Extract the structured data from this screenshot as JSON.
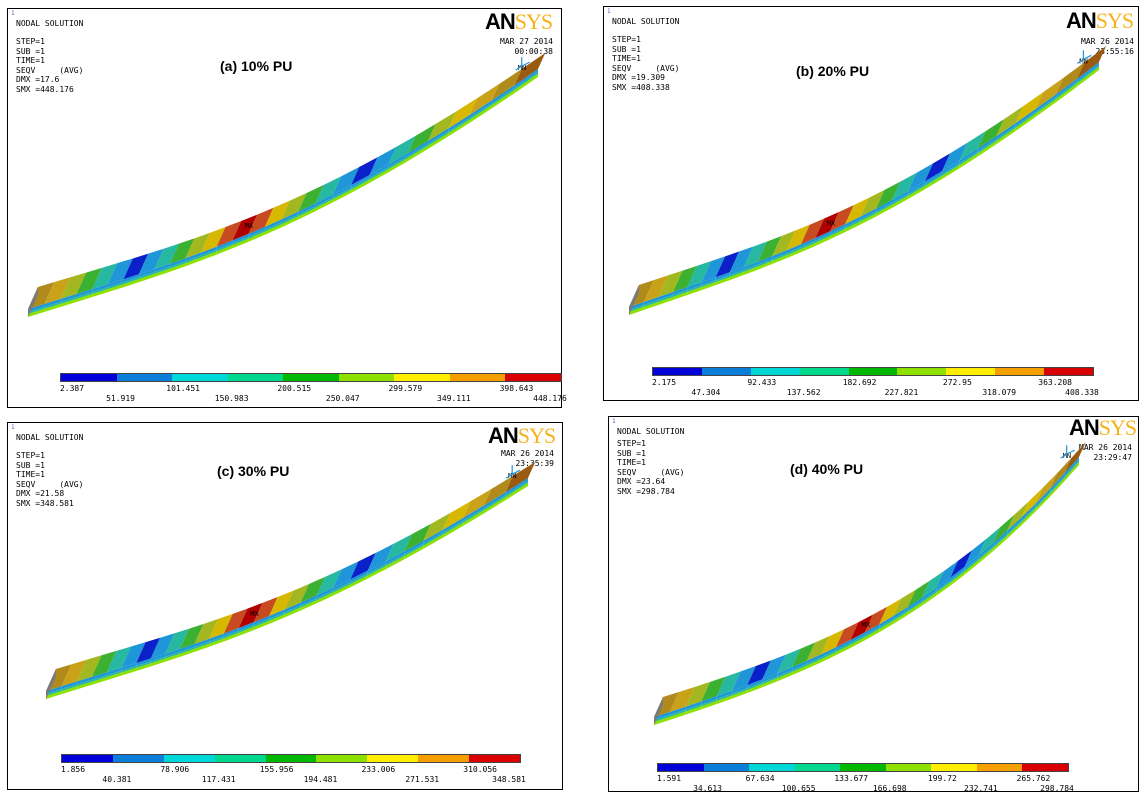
{
  "legend_colors": [
    "#0000d8",
    "#0a7ed8",
    "#00d8d8",
    "#00d88e",
    "#00b800",
    "#8ee000",
    "#ffee00",
    "#f5a000",
    "#d80000"
  ],
  "common": {
    "title": "NODAL SOLUTION",
    "step": "STEP=1",
    "sub": "SUB =1",
    "time": "TIME=1",
    "seqv": "SEQV     (AVG)",
    "logo_a": "AN",
    "logo_b": "SYS",
    "corner": "1",
    "mn": "MN",
    "mx": "MX"
  },
  "panels": [
    {
      "label": "(a) 10% PU",
      "dmx": "DMX =17.6",
      "smx": "SMX =448.176",
      "date": "MAR 27 2014",
      "time": "00:00:38",
      "legend_top": [
        "2.387",
        "101.451",
        "200.515",
        "299.579",
        "398.643"
      ],
      "legend_bottom": [
        "51.919",
        "150.983",
        "250.047",
        "349.111",
        "448.176"
      ]
    },
    {
      "label": "(b) 20% PU",
      "dmx": "DMX =19.309",
      "smx": "SMX =408.338",
      "date": "MAR 26 2014",
      "time": "23:55:16",
      "legend_top": [
        "2.175",
        "92.433",
        "182.692",
        "272.95",
        "363.208"
      ],
      "legend_bottom": [
        "47.304",
        "137.562",
        "227.821",
        "318.079",
        "408.338"
      ]
    },
    {
      "label": "(c) 30% PU",
      "dmx": "DMX =21.58",
      "smx": "SMX =348.581",
      "date": "MAR 26 2014",
      "time": "23:35:39",
      "legend_top": [
        "1.856",
        "78.906",
        "155.956",
        "233.006",
        "310.056"
      ],
      "legend_bottom": [
        "40.381",
        "117.431",
        "194.481",
        "271.531",
        "348.581"
      ]
    },
    {
      "label": "(d) 40% PU",
      "dmx": "DMX =23.64",
      "smx": "SMX =298.784",
      "date": "MAR 26 2014",
      "time": "23:29:47",
      "legend_top": [
        "1.591",
        "67.634",
        "133.677",
        "199.72",
        "265.762"
      ],
      "legend_bottom": [
        "34.613",
        "100.655",
        "166.698",
        "232.741",
        "298.784"
      ]
    }
  ]
}
